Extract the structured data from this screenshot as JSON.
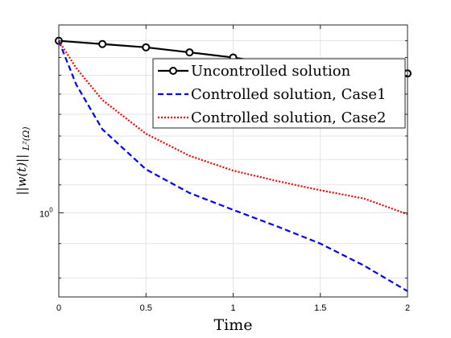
{
  "chart_data": {
    "type": "line",
    "title": "",
    "xlabel": "Time",
    "ylabel": "||w(t)||",
    "ylabel_subscript": "L²(Ω)",
    "x_scale": "linear",
    "y_scale": "log",
    "xlim": [
      0,
      2
    ],
    "ylim": [
      0.75,
      1.9
    ],
    "x_ticks": [
      0,
      0.5,
      1,
      1.5,
      2
    ],
    "x_tick_labels": [
      "0",
      "0.5",
      "1",
      "1.5",
      "2"
    ],
    "y_ticks": [
      1.0
    ],
    "y_tick_label_base": "10",
    "y_tick_label_exp": "0",
    "grid": true,
    "legend_position": "top-right",
    "series": [
      {
        "name": "Uncontrolled solution",
        "color": "#000000",
        "style": "solid",
        "marker": "circle",
        "x": [
          0,
          0.25,
          0.5,
          0.75,
          1.0,
          1.25,
          1.5,
          1.75,
          2.0
        ],
        "y": [
          1.8,
          1.78,
          1.76,
          1.73,
          1.7,
          1.66,
          1.63,
          1.615,
          1.61
        ]
      },
      {
        "name": "Controlled solution, Case1",
        "color": "#0000ff",
        "style": "dashed",
        "marker": "none",
        "x": [
          0,
          0.1,
          0.25,
          0.5,
          0.75,
          1.0,
          1.25,
          1.5,
          1.75,
          2.0
        ],
        "y": [
          1.8,
          1.55,
          1.33,
          1.16,
          1.07,
          1.01,
          0.955,
          0.9,
          0.835,
          0.765
        ]
      },
      {
        "name": "Controlled solution, Case2",
        "color": "#ff0000",
        "style": "dotted",
        "marker": "none",
        "x": [
          0,
          0.1,
          0.25,
          0.5,
          0.75,
          1.0,
          1.25,
          1.5,
          1.75,
          2.0
        ],
        "y": [
          1.8,
          1.64,
          1.47,
          1.31,
          1.215,
          1.155,
          1.115,
          1.08,
          1.05,
          0.995
        ]
      }
    ]
  }
}
